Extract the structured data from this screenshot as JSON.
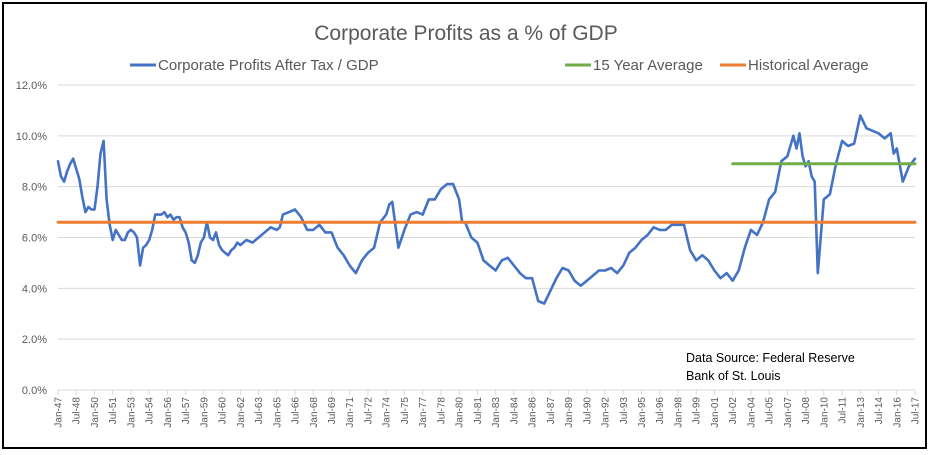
{
  "chart_data": {
    "type": "line",
    "title": "Corporate Profits as a % of GDP",
    "xlabel": "",
    "ylabel": "",
    "ylim": [
      0,
      12
    ],
    "yticks": [
      "0.0%",
      "2.0%",
      "4.0%",
      "6.0%",
      "8.0%",
      "10.0%",
      "12.0%"
    ],
    "ytick_values": [
      0,
      2,
      4,
      6,
      8,
      10,
      12
    ],
    "grid": true,
    "legend_position": "top",
    "x_range": [
      "Jan-47",
      "Jul-17"
    ],
    "x_tick_labels": [
      "Jan-47",
      "Jul-48",
      "Jan-50",
      "Jul-51",
      "Jan-53",
      "Jul-54",
      "Jan-56",
      "Jul-57",
      "Jan-59",
      "Jul-60",
      "Jan-62",
      "Jul-63",
      "Jan-65",
      "Jul-66",
      "Jan-68",
      "Jul-69",
      "Jan-71",
      "Jul-72",
      "Jan-74",
      "Jul-75",
      "Jan-77",
      "Jul-78",
      "Jan-80",
      "Jul-81",
      "Jan-83",
      "Jul-84",
      "Jan-86",
      "Jul-87",
      "Jan-89",
      "Jul-90",
      "Jan-92",
      "Jul-93",
      "Jan-95",
      "Jul-96",
      "Jan-98",
      "Jul-99",
      "Jan-01",
      "Jul-02",
      "Jan-04",
      "Jul-05",
      "Jan-07",
      "Jul-08",
      "Jan-10",
      "Jul-11",
      "Jan-13",
      "Jul-14",
      "Jan-16",
      "Jul-17"
    ],
    "series": [
      {
        "name": "Corporate Profits After Tax / GDP",
        "color": "#4472c4",
        "x_years": [
          1947.0,
          1947.25,
          1947.5,
          1947.75,
          1948.0,
          1948.25,
          1948.5,
          1948.75,
          1949.0,
          1949.25,
          1949.5,
          1949.75,
          1950.0,
          1950.25,
          1950.5,
          1950.75,
          1951.0,
          1951.25,
          1951.5,
          1951.75,
          1952.0,
          1952.25,
          1952.5,
          1952.75,
          1953.0,
          1953.25,
          1953.5,
          1953.75,
          1954.0,
          1954.25,
          1954.5,
          1954.75,
          1955.0,
          1955.25,
          1955.5,
          1955.75,
          1956.0,
          1956.25,
          1956.5,
          1956.75,
          1957.0,
          1957.25,
          1957.5,
          1957.75,
          1958.0,
          1958.25,
          1958.5,
          1958.75,
          1959.0,
          1959.25,
          1959.5,
          1959.75,
          1960.0,
          1960.25,
          1960.5,
          1960.75,
          1961.0,
          1961.25,
          1961.5,
          1961.75,
          1962.0,
          1962.5,
          1963.0,
          1963.5,
          1964.0,
          1964.5,
          1965.0,
          1965.25,
          1965.5,
          1966.0,
          1966.5,
          1967.0,
          1967.5,
          1968.0,
          1968.5,
          1969.0,
          1969.5,
          1970.0,
          1970.5,
          1971.0,
          1971.5,
          1972.0,
          1972.5,
          1973.0,
          1973.5,
          1974.0,
          1974.25,
          1974.5,
          1975.0,
          1975.5,
          1976.0,
          1976.5,
          1977.0,
          1977.5,
          1978.0,
          1978.5,
          1979.0,
          1979.5,
          1980.0,
          1980.25,
          1980.5,
          1981.0,
          1981.5,
          1982.0,
          1982.5,
          1983.0,
          1983.5,
          1984.0,
          1984.5,
          1985.0,
          1985.5,
          1986.0,
          1986.5,
          1987.0,
          1987.5,
          1988.0,
          1988.5,
          1989.0,
          1989.5,
          1990.0,
          1990.5,
          1991.0,
          1991.5,
          1992.0,
          1992.5,
          1993.0,
          1993.5,
          1994.0,
          1994.5,
          1995.0,
          1995.5,
          1996.0,
          1996.5,
          1997.0,
          1997.5,
          1998.0,
          1998.5,
          1999.0,
          1999.5,
          2000.0,
          2000.5,
          2001.0,
          2001.5,
          2002.0,
          2002.5,
          2003.0,
          2003.5,
          2004.0,
          2004.5,
          2005.0,
          2005.5,
          2006.0,
          2006.5,
          2007.0,
          2007.25,
          2007.5,
          2007.75,
          2008.0,
          2008.25,
          2008.5,
          2008.75,
          2009.0,
          2009.25,
          2009.5,
          2010.0,
          2010.5,
          2011.0,
          2011.5,
          2011.75,
          2012.0,
          2012.5,
          2013.0,
          2013.5,
          2014.0,
          2014.5,
          2015.0,
          2015.5,
          2015.75,
          2016.0,
          2016.5,
          2017.0,
          2017.5
        ],
        "values": [
          9.0,
          8.4,
          8.2,
          8.6,
          8.9,
          9.1,
          8.7,
          8.3,
          7.6,
          7.0,
          7.2,
          7.1,
          7.1,
          8.0,
          9.3,
          9.8,
          7.5,
          6.5,
          5.9,
          6.3,
          6.1,
          5.9,
          5.9,
          6.2,
          6.3,
          6.2,
          6.0,
          4.9,
          5.6,
          5.7,
          5.9,
          6.3,
          6.9,
          6.9,
          6.9,
          7.0,
          6.8,
          6.9,
          6.7,
          6.8,
          6.8,
          6.4,
          6.2,
          5.8,
          5.1,
          5.0,
          5.3,
          5.8,
          6.0,
          6.6,
          6.0,
          5.9,
          6.2,
          5.7,
          5.5,
          5.4,
          5.3,
          5.5,
          5.6,
          5.8,
          5.7,
          5.9,
          5.8,
          6.0,
          6.2,
          6.4,
          6.3,
          6.4,
          6.9,
          7.0,
          7.1,
          6.8,
          6.3,
          6.3,
          6.5,
          6.2,
          6.2,
          5.6,
          5.3,
          4.9,
          4.6,
          5.1,
          5.4,
          5.6,
          6.6,
          6.9,
          7.3,
          7.4,
          5.6,
          6.3,
          6.9,
          7.0,
          6.9,
          7.5,
          7.5,
          7.9,
          8.1,
          8.1,
          7.5,
          6.6,
          6.6,
          6.0,
          5.8,
          5.1,
          4.9,
          4.7,
          5.1,
          5.2,
          4.9,
          4.6,
          4.4,
          4.4,
          3.5,
          3.4,
          3.9,
          4.4,
          4.8,
          4.7,
          4.3,
          4.1,
          4.3,
          4.5,
          4.7,
          4.7,
          4.8,
          4.6,
          4.9,
          5.4,
          5.6,
          5.9,
          6.1,
          6.4,
          6.3,
          6.3,
          6.5,
          6.5,
          6.5,
          5.5,
          5.1,
          5.3,
          5.1,
          4.7,
          4.4,
          4.6,
          4.3,
          4.7,
          5.6,
          6.3,
          6.1,
          6.6,
          7.5,
          7.8,
          9.0,
          9.2,
          9.6,
          10.0,
          9.5,
          10.1,
          9.2,
          8.8,
          9.0,
          8.4,
          8.2,
          4.6,
          7.5,
          7.7,
          8.9,
          9.8,
          9.7,
          9.6,
          9.7,
          10.8,
          10.3,
          10.2,
          10.1,
          9.9,
          10.1,
          9.3,
          9.5,
          8.2,
          8.8,
          9.1,
          9.4,
          9.5
        ]
      },
      {
        "name": "15 Year Average",
        "color": "#70ad47",
        "x_years": [
          2002.5,
          2017.5
        ],
        "values": [
          8.9,
          8.9
        ]
      },
      {
        "name": "Historical Average",
        "color": "#ed7d31",
        "x_years": [
          1947.0,
          2017.5
        ],
        "values": [
          6.6,
          6.6
        ]
      }
    ],
    "annotations": [
      "Data Source: Federal Reserve",
      "Bank of St. Louis"
    ]
  }
}
